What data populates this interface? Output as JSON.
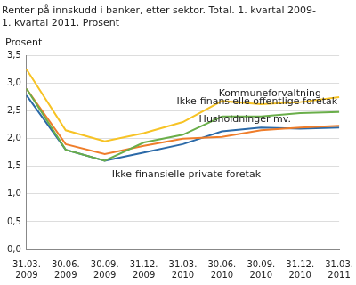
{
  "chart_data": {
    "type": "line",
    "title": [
      "Renter på innskudd i banker, etter sektor. Total. 1. kvartal 2009-",
      "1. kvartal 2011. Prosent"
    ],
    "y_label": "Prosent",
    "categories": [
      "31.03.\n2009",
      "30.06.\n2009",
      "30.09.\n2009",
      "31.12.\n2009",
      "31.03.\n2010",
      "30.06.\n2010",
      "30.09.\n2010",
      "31.12.\n2010",
      "31.03.\n2011"
    ],
    "series": [
      {
        "name": "Kommuneforvaltning",
        "color": "#f7c325",
        "values": [
          3.25,
          2.15,
          1.95,
          2.1,
          2.3,
          2.68,
          2.62,
          2.66,
          2.75
        ]
      },
      {
        "name": "Ikke-finansielle offentlige foretak",
        "color": "#6aae4a",
        "values": [
          2.9,
          1.8,
          1.6,
          1.93,
          2.07,
          2.4,
          2.4,
          2.46,
          2.48
        ]
      },
      {
        "name": "Husholdninger mv.",
        "color": "#ef7d2a",
        "values": [
          2.9,
          1.9,
          1.72,
          1.87,
          2.0,
          2.03,
          2.15,
          2.2,
          2.23
        ]
      },
      {
        "name": "Ikke-finansielle private foretak",
        "color": "#2c6aa8",
        "values": [
          2.78,
          1.8,
          1.6,
          1.75,
          1.9,
          2.13,
          2.2,
          2.18,
          2.2
        ]
      }
    ],
    "ylim": [
      0,
      3.5
    ],
    "yticks": [
      {
        "value": 0,
        "label": "0,0"
      },
      {
        "value": 0.5,
        "label": "0,5"
      },
      {
        "value": 1,
        "label": "1,0"
      },
      {
        "value": 1.5,
        "label": "1,5"
      },
      {
        "value": 2,
        "label": "2,0"
      },
      {
        "value": 2.5,
        "label": "2,5"
      },
      {
        "value": 3,
        "label": "3,0"
      },
      {
        "value": 3.5,
        "label": "3,5"
      }
    ],
    "grid": true,
    "legend": false
  }
}
